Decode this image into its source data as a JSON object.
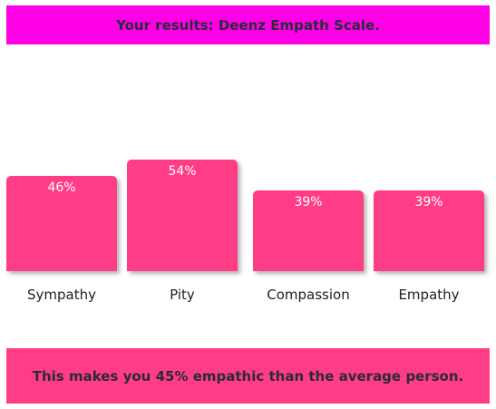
{
  "header": {
    "title": "Your results: Deenz Empath Scale.",
    "background": "#ff00e6"
  },
  "chart_data": {
    "type": "bar",
    "categories": [
      "Sympathy",
      "Pity",
      "Compassion",
      "Empathy"
    ],
    "values": [
      46,
      54,
      39,
      39
    ],
    "value_labels": [
      "46%",
      "54%",
      "39%",
      "39%"
    ],
    "unit": "%",
    "bar_color": "#ff3d86",
    "ylim": [
      0,
      100
    ],
    "grid": false,
    "legend": "none"
  },
  "footer": {
    "message": "This makes you 45% empathic than the average person.",
    "background": "#ff3d86"
  }
}
